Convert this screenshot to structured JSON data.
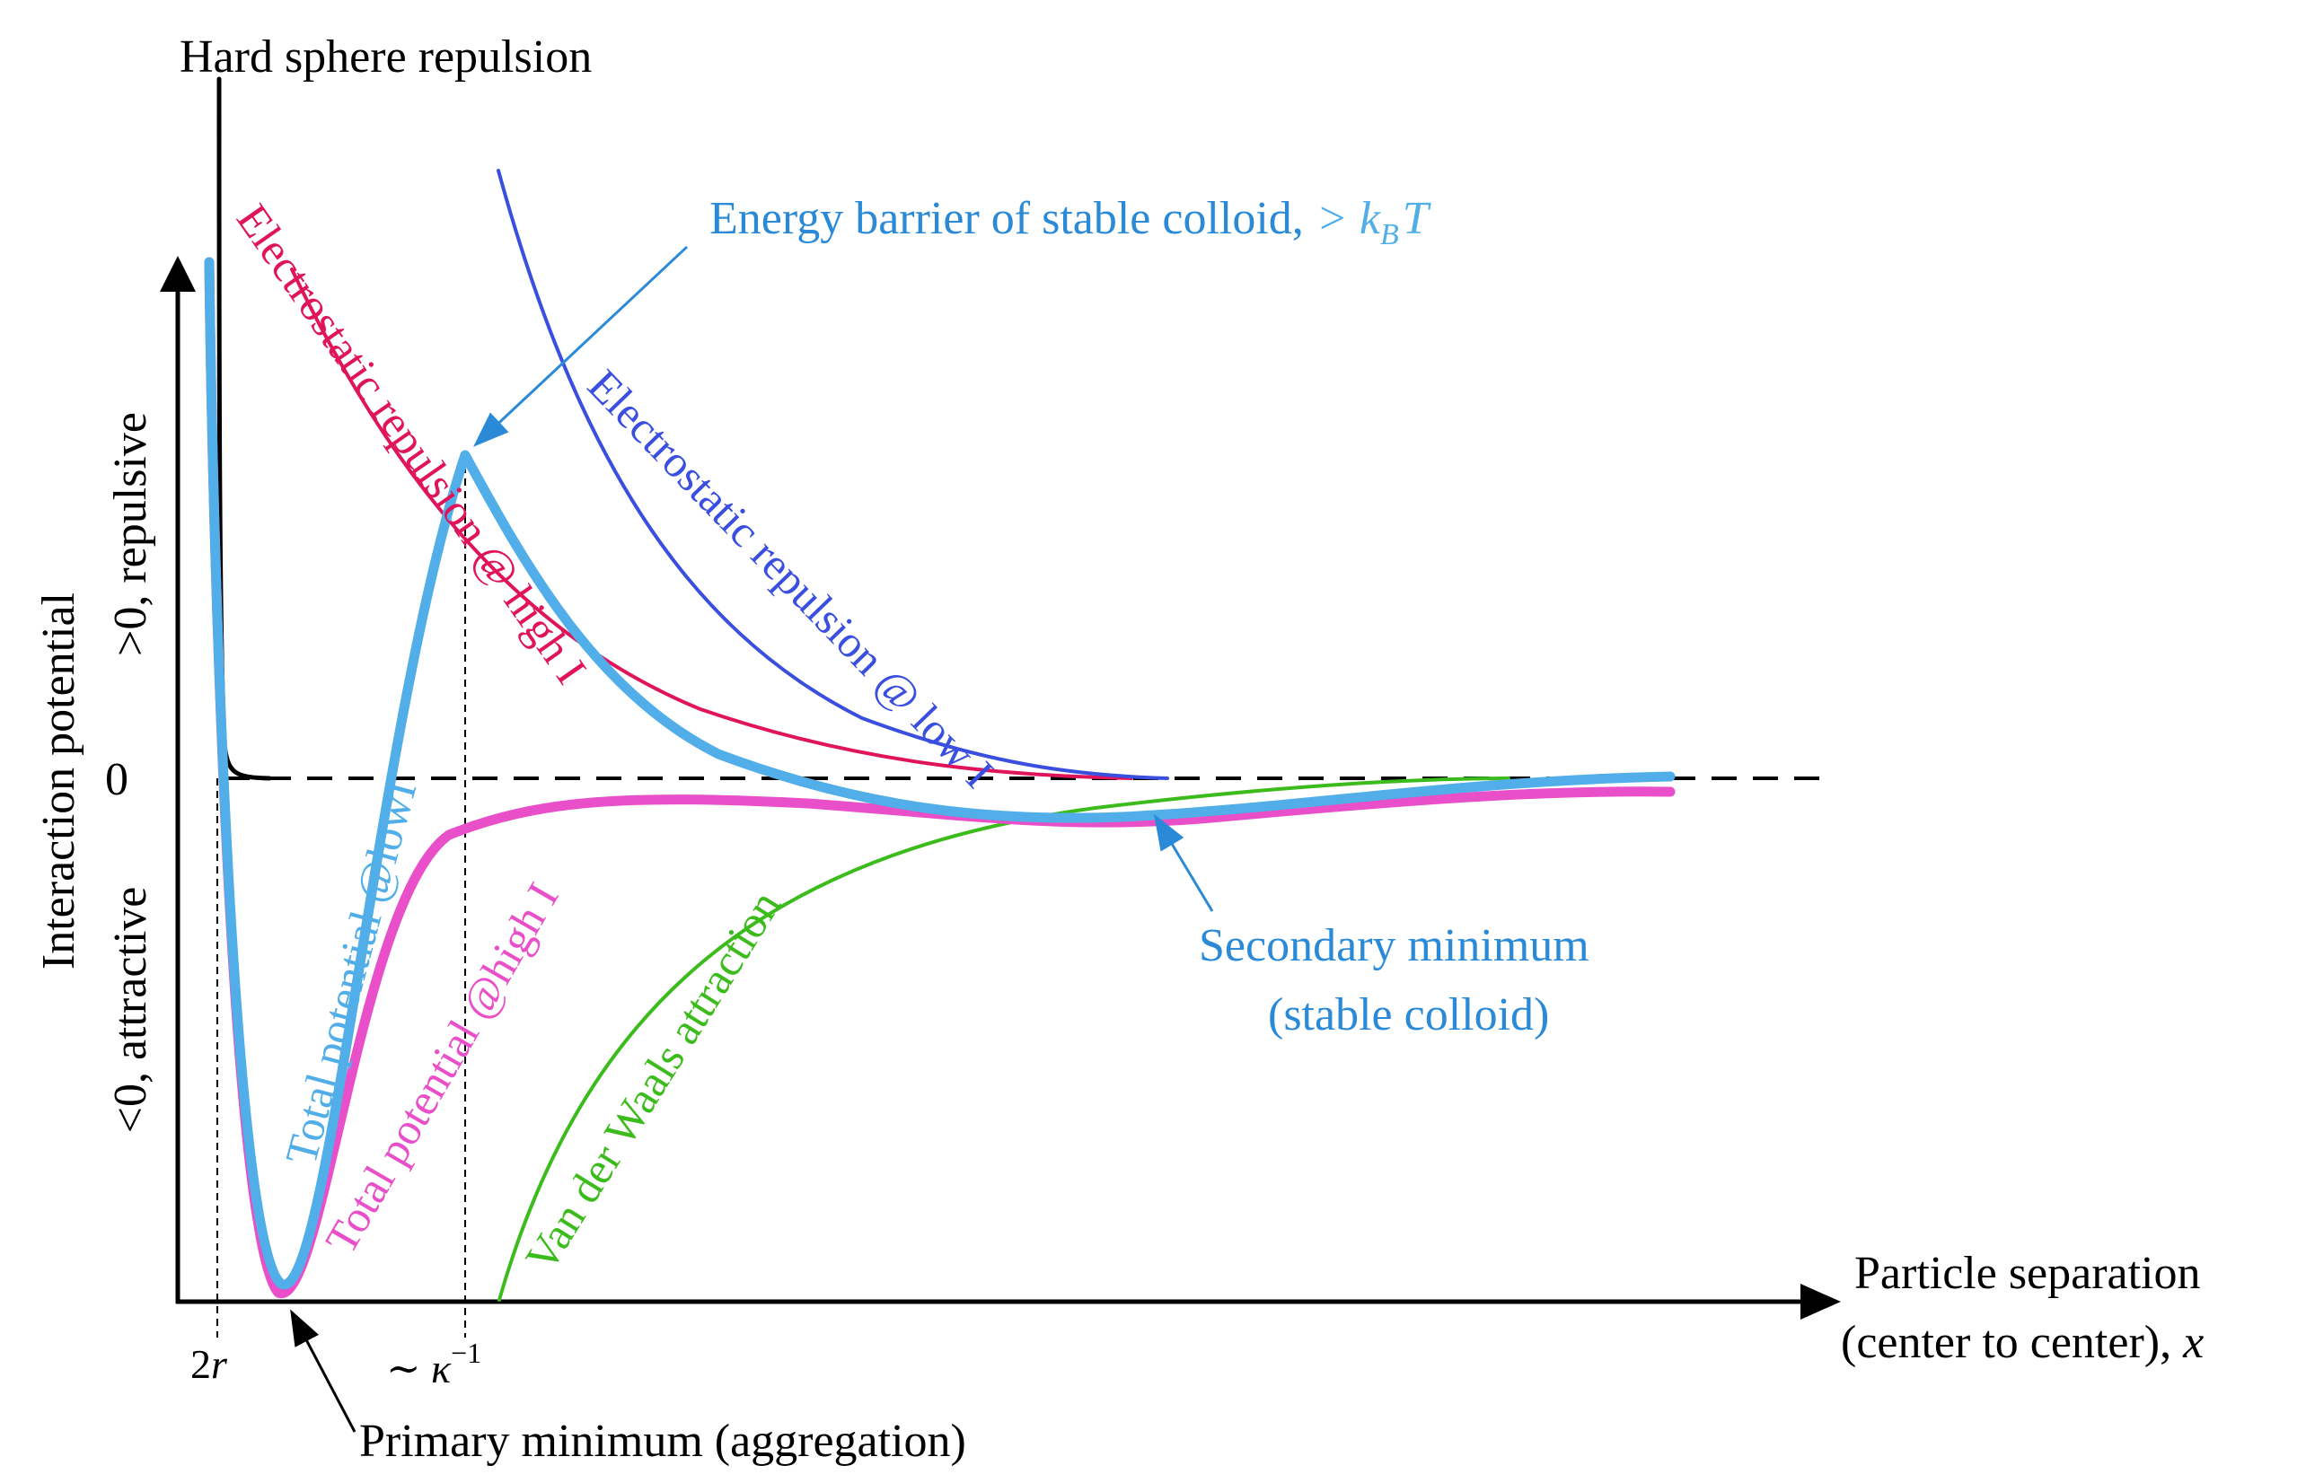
{
  "labels": {
    "hard_sphere": "Hard sphere repulsion",
    "y_axis_title": "Interaction potential",
    "y_positive": ">0, repulsive",
    "y_negative": "<0, attractive",
    "zero": "0",
    "x_axis_line1": "Particle separation",
    "x_axis_line2": "(center to center), ",
    "x_axis_var": "x",
    "tick_2r_num": "2",
    "tick_2r_var": "r",
    "tick_kappa_tilde": "∼ ",
    "tick_kappa_var": "κ",
    "tick_kappa_exp": "−1",
    "energy_barrier": "Energy barrier of stable colloid,",
    "energy_barrier_math": "> k",
    "energy_barrier_sub": "B",
    "energy_barrier_T": "T",
    "secondary_min_line1": "Secondary minimum",
    "secondary_min_line2": "(stable colloid)",
    "primary_min": "Primary minimum (aggregation)",
    "elec_high": "Electrostatic repulsion @ high I",
    "elec_low": "Electrostatic repulsion @ low I",
    "total_low": "Total potential @lowI",
    "total_high": "Total potential @high I",
    "vdw": "Van der Waals attraction"
  },
  "colors": {
    "axis": "#000000",
    "electrostatic_high": "#e0145a",
    "electrostatic_low": "#3a4fe0",
    "total_low": "#52aee8",
    "total_high": "#e84fc8",
    "total_overlap": "#9c4fd6",
    "van_der_waals": "#3cbc1c",
    "annotation_blue": "#2a8ad8",
    "hard_sphere": "#000000"
  }
}
